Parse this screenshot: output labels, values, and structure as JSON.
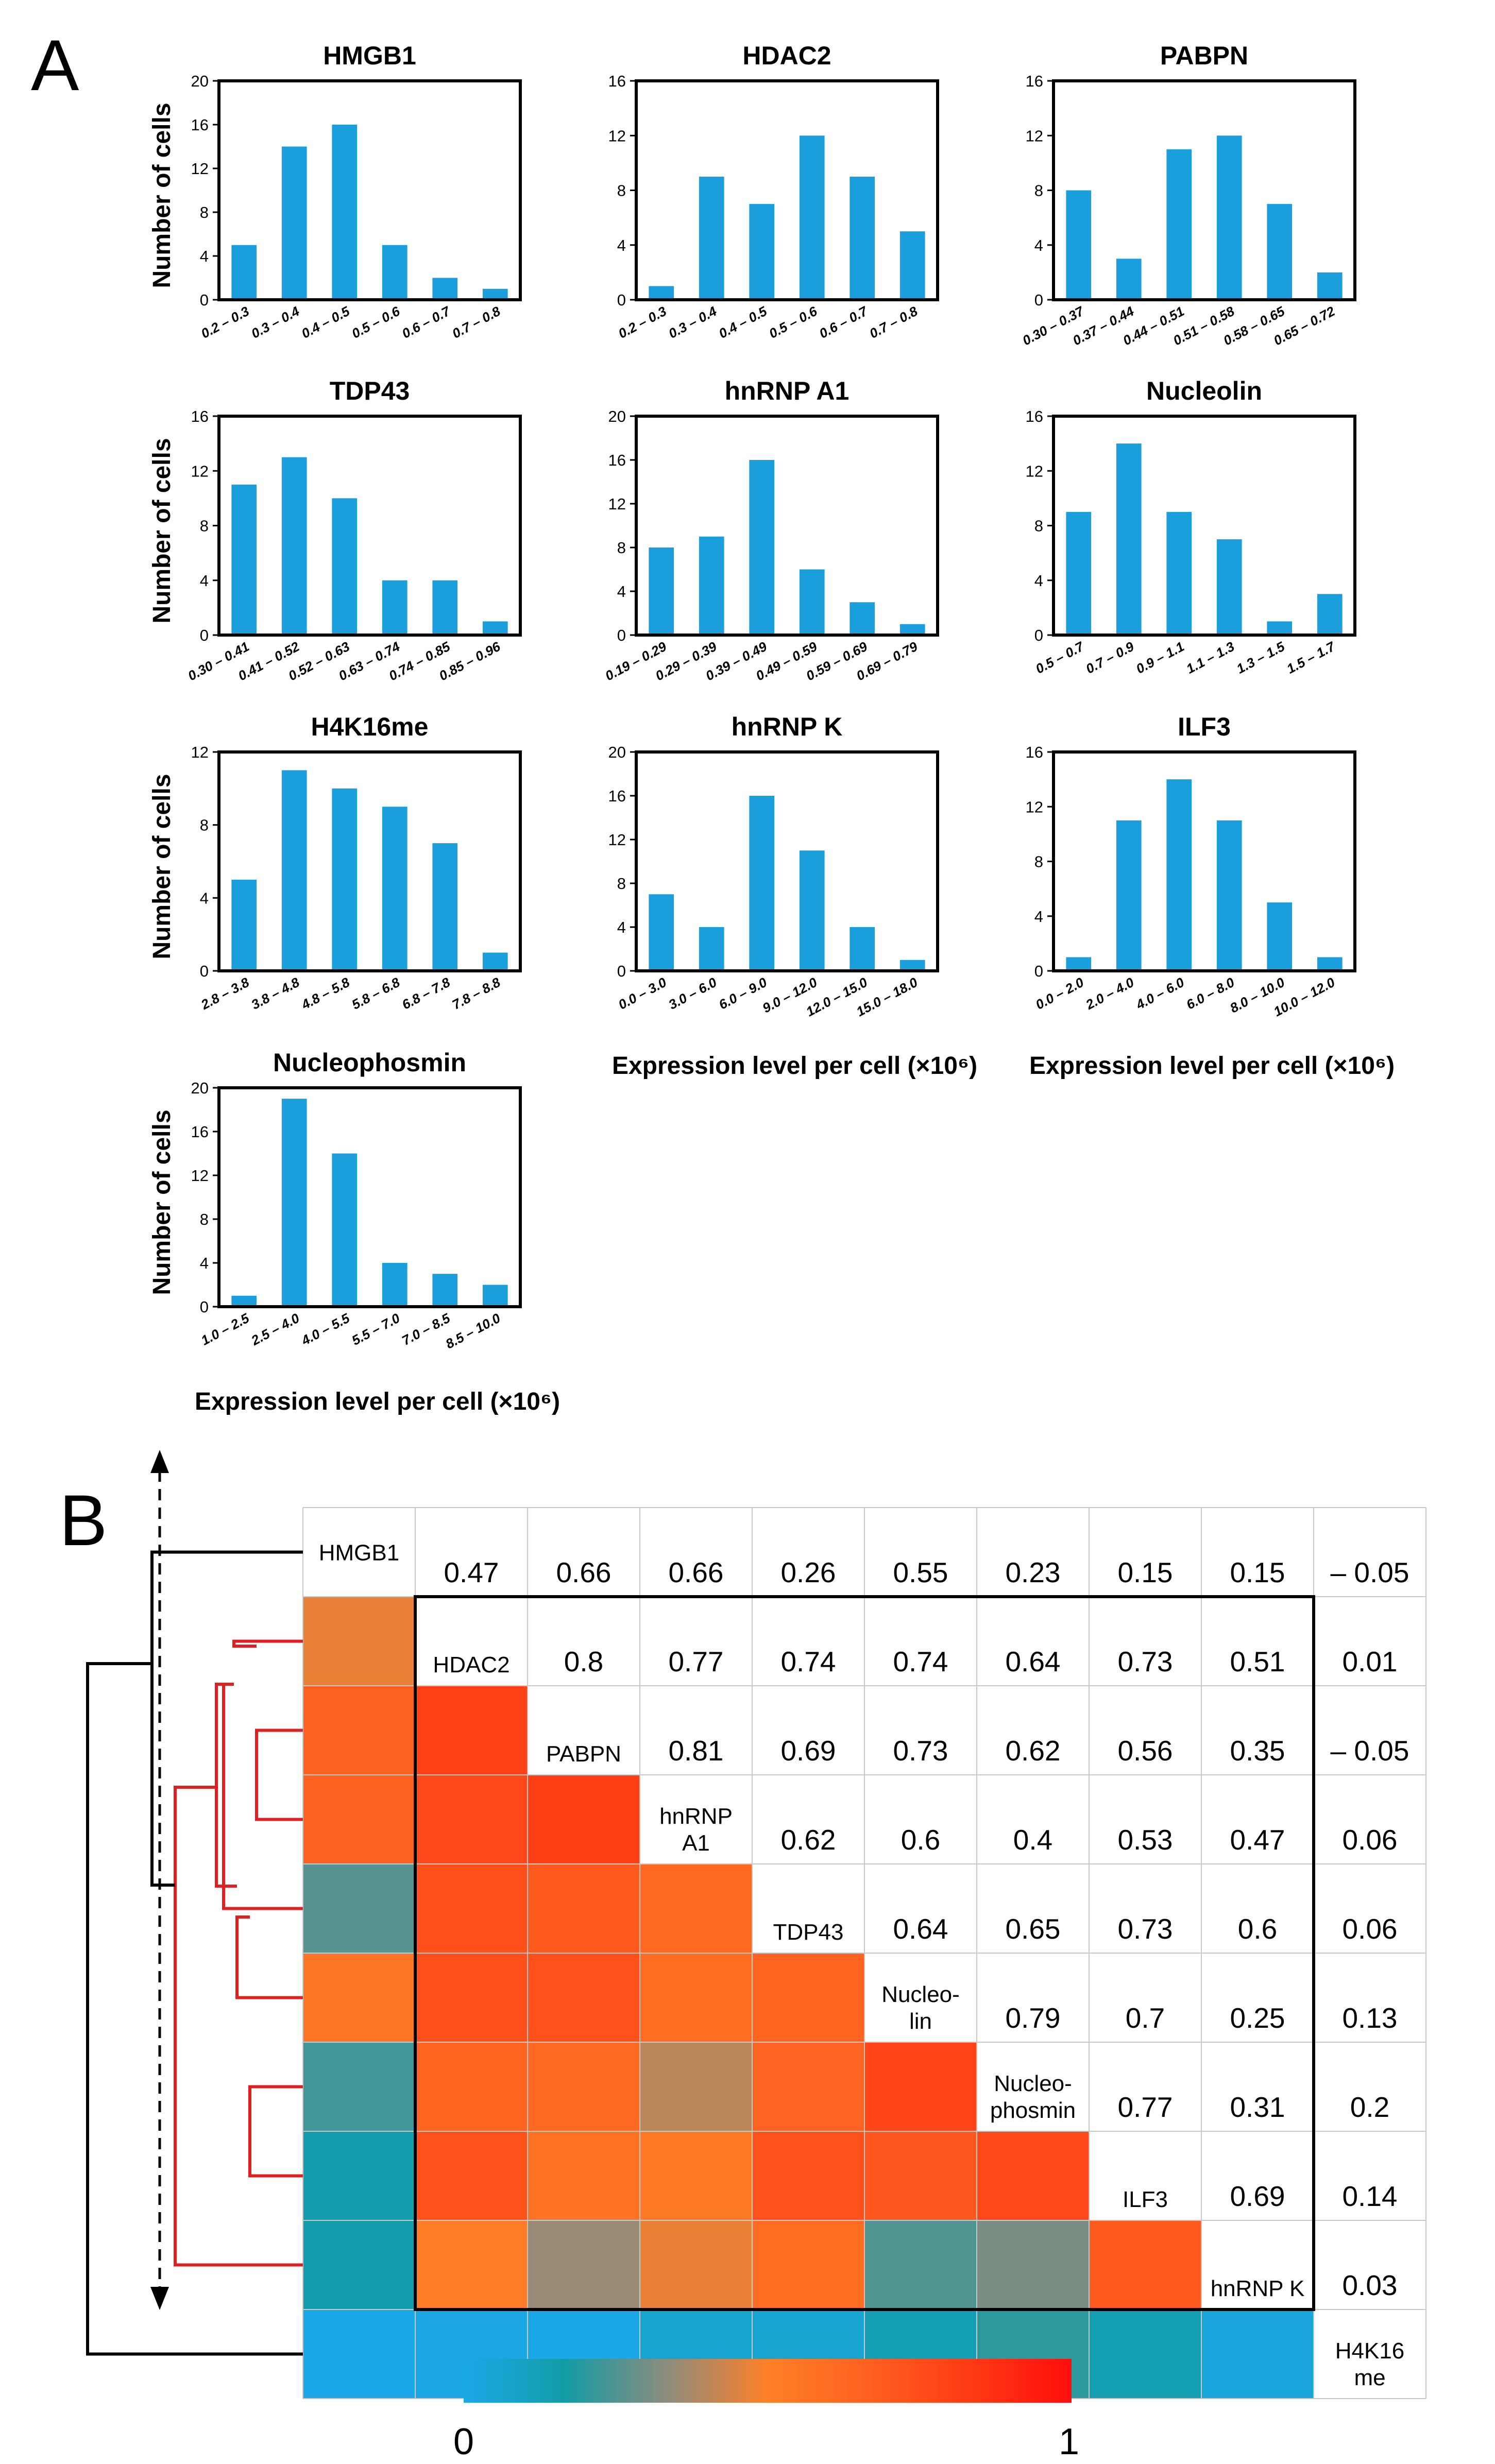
{
  "panels": {
    "a": "A",
    "b": "B"
  },
  "chart_data": [
    {
      "type": "bar",
      "title": "HMGB1",
      "ylabel": "Number of cells",
      "xlabel": "",
      "ylim": [
        0,
        20
      ],
      "yticks": [
        0,
        4,
        8,
        12,
        16,
        20
      ],
      "categories": [
        "0.2 – 0.3",
        "0.3 – 0.4",
        "0.4 – 0.5",
        "0.5 – 0.6",
        "0.6 – 0.7",
        "0.7 – 0.8"
      ],
      "values": [
        5,
        14,
        16,
        5,
        2,
        1
      ]
    },
    {
      "type": "bar",
      "title": "HDAC2",
      "ylabel": "",
      "xlabel": "",
      "ylim": [
        0,
        16
      ],
      "yticks": [
        0,
        4,
        8,
        12,
        16
      ],
      "categories": [
        "0.2 – 0.3",
        "0.3 – 0.4",
        "0.4 – 0.5",
        "0.5 – 0.6",
        "0.6 – 0.7",
        "0.7 – 0.8"
      ],
      "values": [
        1,
        9,
        7,
        12,
        9,
        5
      ]
    },
    {
      "type": "bar",
      "title": "PABPN",
      "ylabel": "",
      "xlabel": "",
      "ylim": [
        0,
        16
      ],
      "yticks": [
        0,
        4,
        8,
        12,
        16
      ],
      "categories": [
        "0.30 – 0.37",
        "0.37 – 0.44",
        "0.44 – 0.51",
        "0.51 – 0.58",
        "0.58 – 0.65",
        "0.65 – 0.72"
      ],
      "values": [
        8,
        3,
        11,
        12,
        7,
        2
      ]
    },
    {
      "type": "bar",
      "title": "TDP43",
      "ylabel": "Number of cells",
      "xlabel": "",
      "ylim": [
        0,
        16
      ],
      "yticks": [
        0,
        4,
        8,
        12,
        16
      ],
      "categories": [
        "0.30 – 0.41",
        "0.41 – 0.52",
        "0.52 – 0.63",
        "0.63 – 0.74",
        "0.74 – 0.85",
        "0.85 – 0.96"
      ],
      "values": [
        11,
        13,
        10,
        4,
        4,
        1
      ]
    },
    {
      "type": "bar",
      "title": "hnRNP A1",
      "ylabel": "",
      "xlabel": "",
      "ylim": [
        0,
        20
      ],
      "yticks": [
        0,
        4,
        8,
        12,
        16,
        20
      ],
      "categories": [
        "0.19 – 0.29",
        "0.29 – 0.39",
        "0.39 – 0.49",
        "0.49 – 0.59",
        "0.59 – 0.69",
        "0.69 – 0.79"
      ],
      "values": [
        8,
        9,
        16,
        6,
        3,
        1
      ]
    },
    {
      "type": "bar",
      "title": "Nucleolin",
      "ylabel": "",
      "xlabel": "",
      "ylim": [
        0,
        16
      ],
      "yticks": [
        0,
        4,
        8,
        12,
        16
      ],
      "categories": [
        "0.5 – 0.7",
        "0.7 – 0.9",
        "0.9 – 1.1",
        "1.1 – 1.3",
        "1.3 – 1.5",
        "1.5 – 1.7"
      ],
      "values": [
        9,
        14,
        9,
        7,
        1,
        3
      ]
    },
    {
      "type": "bar",
      "title": "H4K16me",
      "ylabel": "Number of cells",
      "xlabel": "",
      "ylim": [
        0,
        12
      ],
      "yticks": [
        0,
        4,
        8,
        12
      ],
      "categories": [
        "2.8 – 3.8",
        "3.8 – 4.8",
        "4.8 – 5.8",
        "5.8 – 6.8",
        "6.8 – 7.8",
        "7.8 – 8.8"
      ],
      "values": [
        5,
        11,
        10,
        9,
        7,
        1
      ]
    },
    {
      "type": "bar",
      "title": "hnRNP K",
      "ylabel": "",
      "xlabel": "Expression level per cell (×10⁶)",
      "ylim": [
        0,
        20
      ],
      "yticks": [
        0,
        4,
        8,
        12,
        16,
        20
      ],
      "categories": [
        "0.0 – 3.0",
        "3.0 – 6.0",
        "6.0 – 9.0",
        "9.0 – 12.0",
        "12.0 – 15.0",
        "15.0 – 18.0"
      ],
      "values": [
        7,
        4,
        16,
        11,
        4,
        1
      ]
    },
    {
      "type": "bar",
      "title": "ILF3",
      "ylabel": "",
      "xlabel": "Expression level per cell (×10⁶)",
      "ylim": [
        0,
        16
      ],
      "yticks": [
        0,
        4,
        8,
        12,
        16
      ],
      "categories": [
        "0.0 – 2.0",
        "2.0 – 4.0",
        "4.0 – 6.0",
        "6.0 – 8.0",
        "8.0 – 10.0",
        "10.0 – 12.0"
      ],
      "values": [
        1,
        11,
        14,
        11,
        5,
        1
      ]
    },
    {
      "type": "bar",
      "title": "Nucleophosmin",
      "ylabel": "Number of cells",
      "xlabel": "Expression level per cell (×10⁶)",
      "ylim": [
        0,
        20
      ],
      "yticks": [
        0,
        4,
        8,
        12,
        16,
        20
      ],
      "categories": [
        "1.0 – 2.5",
        "2.5 – 4.0",
        "4.0 – 5.5",
        "5.5 – 7.0",
        "7.0 – 8.5",
        "8.5 – 10.0"
      ],
      "values": [
        1,
        19,
        14,
        4,
        3,
        2
      ]
    },
    {
      "type": "heatmap",
      "title": "",
      "labels": [
        "HMGB1",
        "HDAC2",
        "PABPN",
        "hnRNP A1",
        "TDP43",
        "Nucleolin",
        "Nucleophosmin",
        "ILF3",
        "hnRNP K",
        "H4K16me"
      ],
      "diagonal_labels": [
        [
          "HMGB1"
        ],
        [
          "HDAC2"
        ],
        [
          "PABPN"
        ],
        [
          "hnRNP",
          "A1"
        ],
        [
          "TDP43"
        ],
        [
          "Nucleo-",
          "lin"
        ],
        [
          "Nucleo-",
          "phosmin"
        ],
        [
          "ILF3"
        ],
        [
          "hnRNP K"
        ],
        [
          "H4K16",
          "me"
        ]
      ],
      "upper_values": [
        [
          "0.47",
          "0.66",
          "0.66",
          "0.26",
          "0.55",
          "0.23",
          "0.15",
          "0.15",
          "– 0.05"
        ],
        [
          "0.8",
          "0.77",
          "0.74",
          "0.74",
          "0.64",
          "0.73",
          "0.51",
          "0.01"
        ],
        [
          "0.81",
          "0.69",
          "0.73",
          "0.62",
          "0.56",
          "0.35",
          "– 0.05"
        ],
        [
          "0.62",
          "0.6",
          "0.4",
          "0.53",
          "0.47",
          "0.06"
        ],
        [
          "0.64",
          "0.65",
          "0.73",
          "0.6",
          "0.06"
        ],
        [
          "0.79",
          "0.7",
          "0.25",
          "0.13"
        ],
        [
          "0.77",
          "0.31",
          "0.2"
        ],
        [
          "0.69",
          "0.14"
        ],
        [
          "0.03"
        ]
      ],
      "colorbar": {
        "min_label": "0",
        "max_label": "1",
        "min": 0,
        "max": 1,
        "colors": [
          "#1aa8e8",
          "#139ca6",
          "#8c8c7e",
          "#fe8027",
          "#ff6020",
          "#ff3a14",
          "#ff0d0d"
        ]
      },
      "dendrogram": {
        "cluster_color": "#e02020",
        "outer_color": "#000000",
        "axis_style": "dashed double arrow"
      }
    }
  ]
}
